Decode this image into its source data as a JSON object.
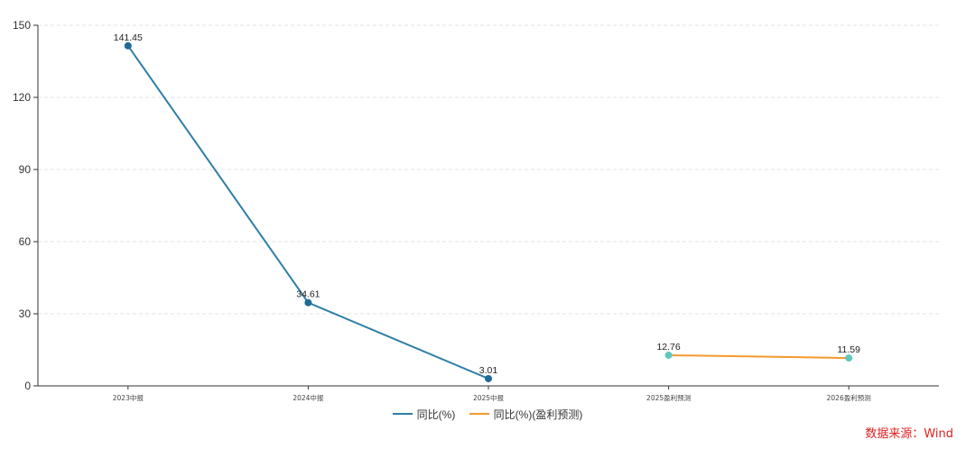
{
  "chart_data": {
    "type": "line",
    "categories": [
      "2023中报",
      "2024中报",
      "2025中报",
      "2025盈利预测",
      "2026盈利预测"
    ],
    "ylim": [
      0,
      150
    ],
    "yticks": [
      0,
      30,
      60,
      90,
      120,
      150
    ],
    "grid": true,
    "legend_position": "bottom-center",
    "series": [
      {
        "name": "同比(%)",
        "color": "#2e7ea8",
        "marker_color": "#1f6a96",
        "values": [
          141.45,
          34.61,
          3.01,
          null,
          null
        ],
        "labels": [
          "141.45",
          "34.61",
          "3.01",
          "",
          ""
        ]
      },
      {
        "name": "同比(%)(盈利预测)",
        "color": "#f59a2e",
        "marker_color": "#5fc8c0",
        "values": [
          null,
          null,
          null,
          12.76,
          11.59
        ],
        "labels": [
          "",
          "",
          "",
          "12.76",
          "11.59"
        ]
      }
    ]
  },
  "legend": {
    "item0": "同比(%)",
    "item1": "同比(%)(盈利预测)"
  },
  "source": "数据来源：Wind"
}
